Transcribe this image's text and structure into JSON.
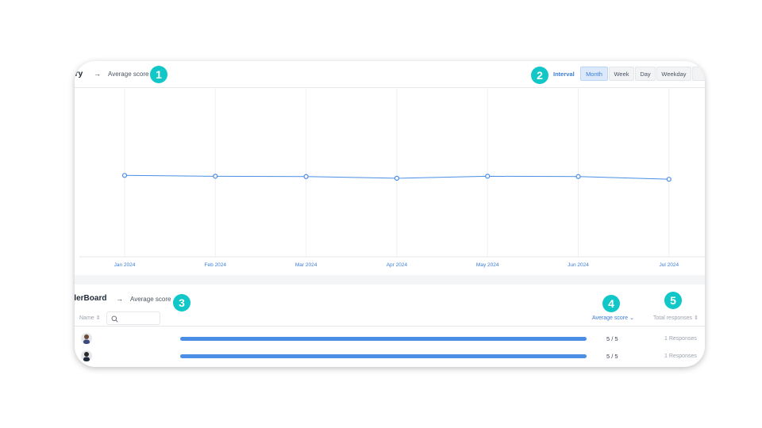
{
  "history": {
    "title": "ory",
    "arrow": "→",
    "metric": "Average score"
  },
  "interval": {
    "label": "Interval",
    "options": [
      "Month",
      "Week",
      "Day",
      "Weekday"
    ],
    "selected": "Month"
  },
  "chart_data": {
    "type": "line",
    "categories": [
      "Jan 2024",
      "Feb 2024",
      "Mar 2024",
      "Apr 2024",
      "May 2024",
      "Jun 2024",
      "Jul 2024"
    ],
    "series": [
      {
        "values": [
          4.75,
          4.7,
          4.68,
          4.58,
          4.7,
          4.68,
          4.52
        ]
      }
    ],
    "ylim": [
      0,
      10
    ],
    "grid": "vertical"
  },
  "leaderboard": {
    "title": "derBoard",
    "arrow": "→",
    "metric": "Average score",
    "columns": {
      "name": "Name ⇕",
      "average": "Average score ⌄",
      "total": "Total responses ⇕"
    },
    "search_placeholder": "",
    "rows": [
      {
        "avatar": "avatar-1",
        "bar_fraction": 1.0,
        "score": "5 / 5",
        "responses": "1 Responses"
      },
      {
        "avatar": "avatar-2",
        "bar_fraction": 1.0,
        "score": "5 / 5",
        "responses": "1 Responses"
      }
    ]
  },
  "badges": [
    "1",
    "2",
    "3",
    "4",
    "5"
  ],
  "colors": {
    "accent": "#3b7dd8",
    "line": "#4a8ee6",
    "badge": "#12c7c7"
  }
}
